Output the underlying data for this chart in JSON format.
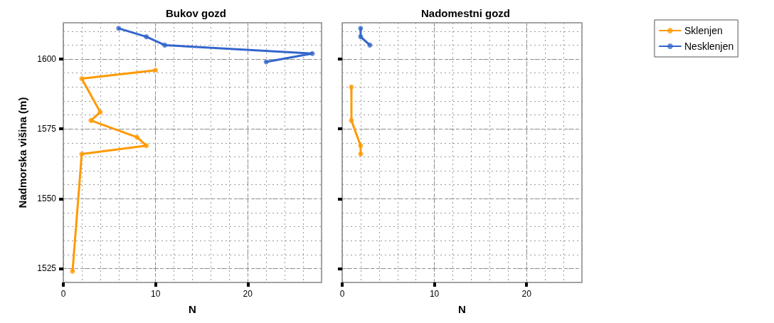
{
  "chart_data": [
    {
      "type": "line",
      "title": "Bukov gozd",
      "xlabel": "N",
      "ylabel": "Nadmorska višina (m)",
      "xlim": [
        0,
        28
      ],
      "xticks": [
        0,
        10,
        20
      ],
      "ylim": [
        1520,
        1613
      ],
      "yticks": [
        1525,
        1550,
        1575,
        1600
      ],
      "grid": true,
      "marker": "circle",
      "line_style": "solid",
      "legend": false,
      "series": [
        {
          "color": "#ff9900",
          "x": [
            10,
            2,
            4,
            3,
            8,
            9,
            2,
            1
          ],
          "values": [
            1596,
            1593,
            1581,
            1578,
            1572,
            1569,
            1566,
            1524
          ]
        },
        {
          "color": "#3366cc",
          "x": [
            6,
            9,
            11,
            27,
            22
          ],
          "values": [
            1611,
            1608,
            1605,
            1602,
            1599
          ]
        }
      ]
    },
    {
      "type": "line",
      "title": "Nadomestni gozd",
      "xlabel": "N",
      "xlim": [
        0,
        26
      ],
      "xticks": [
        0,
        10,
        20
      ],
      "ylim": [
        1520,
        1613
      ],
      "yticks": [
        1525,
        1550,
        1575,
        1600
      ],
      "tick_labels": "x",
      "grid": true,
      "marker": "circle",
      "line_style": "solid",
      "legend": "right",
      "series": [
        {
          "name": "Sklenjen",
          "color": "#ff9900",
          "x": [
            1,
            1,
            2,
            2
          ],
          "values": [
            1590,
            1578,
            1569,
            1566
          ]
        },
        {
          "name": "Nesklenjen",
          "color": "#3366cc",
          "x": [
            2,
            2,
            3
          ],
          "values": [
            1611,
            1608,
            1605
          ]
        }
      ]
    }
  ]
}
